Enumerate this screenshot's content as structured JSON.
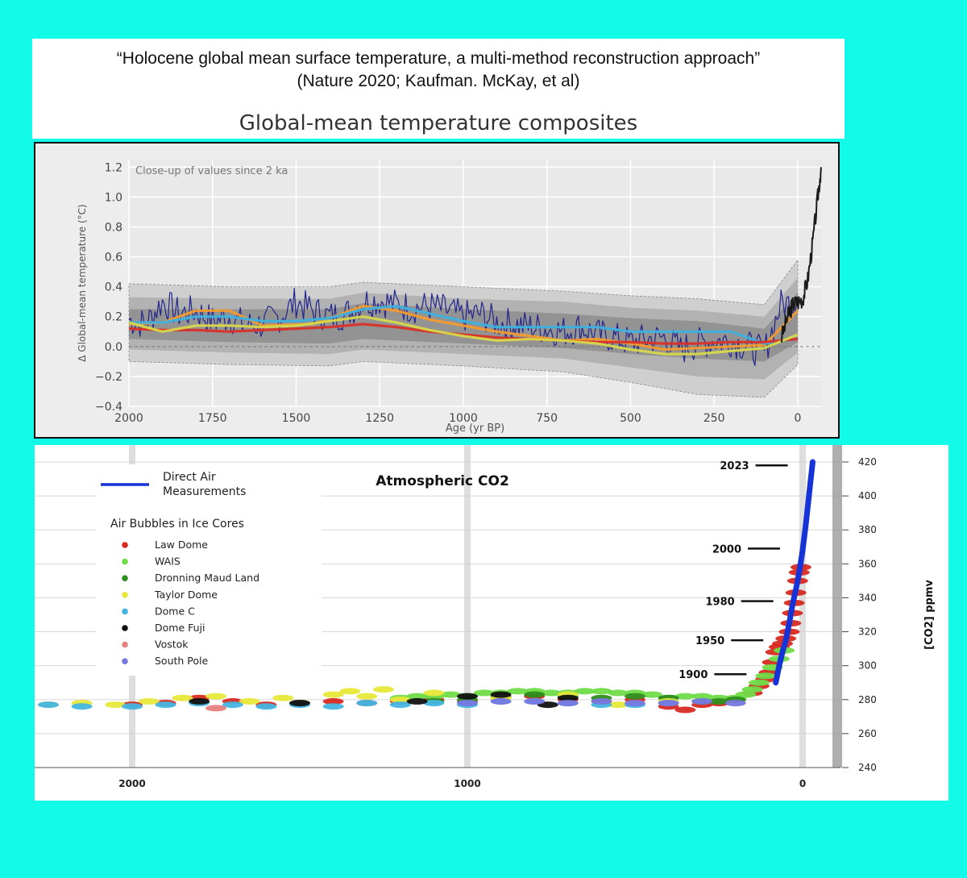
{
  "header": {
    "line1": "“Holocene global mean surface temperature, a multi-method reconstruction approach”",
    "line2": "(Nature 2020; Kaufman. McKay, et al)",
    "chart_title": "Global-mean temperature composites"
  },
  "colors": {
    "background": "#12fbe8",
    "noisy": "#1a1e8c",
    "orange": "#f39a2c",
    "cyan": "#3db1e0",
    "red": "#d83128",
    "yellow": "#d7d84a",
    "instrumental": "#111111",
    "direct_air": "#1633d8"
  },
  "chart_data": [
    {
      "type": "line",
      "title": "Global-mean temperature composites",
      "annotation": "Close-up of values since 2 ka",
      "xlabel": "Age (yr BP)",
      "ylabel": "Δ Global-mean temperature (°C)",
      "xlim": [
        2000,
        -70
      ],
      "ylim": [
        -0.4,
        1.25
      ],
      "x_ticks": [
        2000,
        1750,
        1500,
        1250,
        1000,
        750,
        500,
        250,
        0
      ],
      "x_tick_labels": [
        "2000",
        "1750",
        "1500",
        "1250",
        "1000",
        "750",
        "500",
        "250",
        "0"
      ],
      "y_ticks": [
        -0.4,
        -0.2,
        0.0,
        0.2,
        0.4,
        0.6,
        0.8,
        1.0,
        1.2
      ],
      "y_tick_labels": [
        "−0.4",
        "−0.2",
        "0.0",
        "0.2",
        "0.4",
        "0.6",
        "0.8",
        "1.0",
        "1.2"
      ],
      "grid": true,
      "uncertainty_bands": [
        {
          "name": "outer",
          "x": [
            2000,
            1700,
            1400,
            1300,
            1000,
            700,
            500,
            300,
            100,
            0
          ],
          "upper": [
            0.42,
            0.4,
            0.4,
            0.43,
            0.4,
            0.37,
            0.34,
            0.32,
            0.28,
            0.58
          ],
          "lower": [
            -0.1,
            -0.12,
            -0.13,
            -0.1,
            -0.13,
            -0.17,
            -0.24,
            -0.32,
            -0.34,
            -0.12
          ]
        },
        {
          "name": "middle",
          "x": [
            2000,
            1700,
            1400,
            1300,
            1000,
            700,
            500,
            300,
            100,
            0
          ],
          "upper": [
            0.33,
            0.32,
            0.32,
            0.36,
            0.32,
            0.3,
            0.26,
            0.24,
            0.2,
            0.46
          ],
          "lower": [
            -0.02,
            -0.04,
            -0.05,
            -0.02,
            -0.05,
            -0.08,
            -0.14,
            -0.2,
            -0.22,
            -0.04
          ]
        },
        {
          "name": "inner",
          "x": [
            2000,
            1700,
            1400,
            1300,
            1000,
            700,
            500,
            300,
            100,
            0
          ],
          "upper": [
            0.25,
            0.25,
            0.25,
            0.29,
            0.25,
            0.22,
            0.19,
            0.17,
            0.12,
            0.36
          ],
          "lower": [
            0.05,
            0.03,
            0.02,
            0.05,
            0.02,
            -0.01,
            -0.05,
            -0.08,
            -0.1,
            0.03
          ]
        }
      ],
      "series": [
        {
          "name": "high-resolution composite",
          "color": "#1a1e8c",
          "x": [
            2000,
            1950,
            1900,
            1850,
            1800,
            1750,
            1700,
            1650,
            1600,
            1550,
            1500,
            1450,
            1400,
            1350,
            1300,
            1250,
            1200,
            1150,
            1100,
            1050,
            1000,
            950,
            900,
            850,
            800,
            750,
            700,
            650,
            600,
            550,
            500,
            450,
            400,
            350,
            300,
            250,
            200,
            150,
            100,
            50,
            0
          ],
          "y": [
            0.18,
            0.15,
            0.3,
            0.22,
            0.24,
            0.17,
            0.2,
            0.14,
            0.15,
            0.2,
            0.3,
            0.24,
            0.2,
            0.22,
            0.3,
            0.31,
            0.28,
            0.26,
            0.27,
            0.24,
            0.2,
            0.22,
            0.16,
            0.15,
            0.13,
            0.12,
            0.1,
            0.13,
            0.08,
            0.06,
            0.03,
            0.05,
            0.06,
            -0.02,
            0.02,
            0.04,
            0.04,
            0.0,
            -0.04,
            0.28,
            0.3
          ]
        },
        {
          "name": "orange composite",
          "color": "#f39a2c",
          "x": [
            2000,
            1900,
            1800,
            1700,
            1600,
            1450,
            1300,
            1200,
            1100,
            1000,
            900,
            800,
            700,
            600,
            500,
            400,
            300,
            200,
            100,
            0
          ],
          "y": [
            0.15,
            0.16,
            0.24,
            0.24,
            0.14,
            0.15,
            0.27,
            0.24,
            0.18,
            0.14,
            0.1,
            0.07,
            0.04,
            0.05,
            0.02,
            -0.02,
            -0.01,
            0.0,
            0.01,
            0.24
          ]
        },
        {
          "name": "cyan composite",
          "color": "#3db1e0",
          "x": [
            2000,
            1900,
            1800,
            1700,
            1600,
            1500,
            1400,
            1300,
            1200,
            1100,
            1000,
            900,
            800,
            700,
            600,
            500,
            400,
            300,
            200,
            100,
            0
          ],
          "y": [
            0.16,
            0.16,
            0.2,
            0.2,
            0.17,
            0.17,
            0.19,
            0.25,
            0.27,
            0.22,
            0.17,
            0.13,
            0.13,
            0.13,
            0.13,
            0.1,
            0.1,
            0.1,
            0.1,
            0.02,
            0.05
          ]
        },
        {
          "name": "red composite",
          "color": "#d83128",
          "x": [
            2000,
            1900,
            1800,
            1700,
            1600,
            1500,
            1400,
            1300,
            1200,
            1100,
            1000,
            900,
            800,
            700,
            600,
            500,
            400,
            300,
            200,
            100,
            0
          ],
          "y": [
            0.12,
            0.11,
            0.11,
            0.1,
            0.11,
            0.12,
            0.13,
            0.15,
            0.13,
            0.1,
            0.08,
            0.06,
            0.05,
            0.04,
            0.03,
            0.03,
            0.02,
            0.02,
            0.03,
            0.03,
            0.05
          ]
        },
        {
          "name": "yellow composite",
          "color": "#d7d84a",
          "x": [
            2000,
            1900,
            1800,
            1700,
            1600,
            1500,
            1400,
            1300,
            1200,
            1100,
            1000,
            900,
            800,
            700,
            600,
            500,
            400,
            300,
            200,
            100,
            0
          ],
          "y": [
            0.16,
            0.1,
            0.14,
            0.14,
            0.13,
            0.14,
            0.17,
            0.2,
            0.16,
            0.11,
            0.07,
            0.04,
            0.05,
            0.04,
            0.02,
            -0.02,
            -0.05,
            -0.05,
            -0.03,
            -0.01,
            0.08
          ]
        },
        {
          "name": "instrumental",
          "color": "#111111",
          "x": [
            50,
            30,
            15,
            0,
            -15,
            -30,
            -45,
            -60,
            -70
          ],
          "y": [
            0.05,
            0.2,
            0.28,
            0.3,
            0.32,
            0.45,
            0.7,
            1.0,
            1.2
          ]
        }
      ]
    },
    {
      "type": "scatter",
      "title": "Atmospheric CO2",
      "ylabel": "[CO2] ppmv",
      "xlim": [
        2280,
        -70
      ],
      "ylim": [
        240,
        420
      ],
      "x_ticks": [
        2000,
        1000,
        0
      ],
      "x_tick_labels": [
        "2000",
        "1000",
        "0"
      ],
      "y_ticks": [
        240,
        260,
        280,
        300,
        320,
        340,
        360,
        380,
        400,
        420
      ],
      "y_tick_labels": [
        "240",
        "260",
        "280",
        "300",
        "320",
        "340",
        "360",
        "380",
        "400",
        "420"
      ],
      "grid": true,
      "legend": {
        "position": "top-left",
        "direct_label_line1": "Direct Air",
        "direct_label_line2": "Measurements",
        "ice_title": "Air Bubbles in Ice Cores"
      },
      "year_labels": [
        {
          "label": "2023",
          "x": -23,
          "y": 418
        },
        {
          "label": "2000",
          "x": 0,
          "y": 369
        },
        {
          "label": "1980",
          "x": 20,
          "y": 338
        },
        {
          "label": "1950",
          "x": 50,
          "y": 315
        },
        {
          "label": "1900",
          "x": 100,
          "y": 295
        }
      ],
      "direct_air": {
        "name": "Direct Air Measurements",
        "color": "#1633d8",
        "x": [
          80,
          70,
          60,
          50,
          40,
          30,
          20,
          10,
          0,
          -10,
          -20,
          -30
        ],
        "y": [
          290,
          300,
          308,
          315,
          325,
          336,
          345,
          355,
          368,
          384,
          402,
          420
        ]
      },
      "ice_cores": [
        {
          "name": "Law Dome",
          "color": "#d82a22",
          "x": [
            2000,
            1900,
            1800,
            1700,
            1600,
            1500,
            1400,
            1300,
            1200,
            1100,
            1000,
            900,
            800,
            700,
            600,
            500,
            400,
            350,
            300,
            250,
            200,
            150,
            130,
            110,
            100,
            90,
            80,
            70,
            60,
            50,
            40,
            35,
            30,
            25,
            20,
            15,
            10,
            5
          ],
          "y": [
            277,
            278,
            281,
            279,
            277,
            278,
            279,
            278,
            279,
            280,
            279,
            281,
            282,
            280,
            279,
            280,
            276,
            274,
            277,
            278,
            280,
            284,
            288,
            292,
            296,
            302,
            308,
            311,
            313,
            316,
            320,
            325,
            331,
            337,
            343,
            350,
            355,
            358
          ]
        },
        {
          "name": "WAIS",
          "color": "#6fdc47",
          "x": [
            1200,
            1150,
            1100,
            1050,
            1000,
            950,
            900,
            850,
            800,
            750,
            700,
            650,
            600,
            550,
            500,
            450,
            400,
            350,
            300,
            250,
            200,
            170,
            150,
            130,
            110,
            90,
            70,
            55
          ],
          "y": [
            281,
            282,
            282,
            283,
            282,
            284,
            284,
            285,
            285,
            284,
            284,
            285,
            285,
            284,
            284,
            283,
            281,
            282,
            282,
            281,
            281,
            283,
            286,
            290,
            294,
            299,
            304,
            309
          ]
        },
        {
          "name": "Dronning Maud Land",
          "color": "#2e8e1e",
          "x": [
            1100,
            1000,
            900,
            800,
            700,
            600,
            500,
            400,
            300,
            250,
            200
          ],
          "y": [
            279,
            280,
            282,
            283,
            282,
            281,
            282,
            281,
            279,
            279,
            280
          ]
        },
        {
          "name": "Taylor Dome",
          "color": "#e8e83a",
          "x": [
            2250,
            2150,
            2050,
            1950,
            1850,
            1750,
            1650,
            1550,
            1500,
            1400,
            1350,
            1300,
            1250,
            1200,
            1100,
            900,
            700,
            550,
            400
          ],
          "y": [
            277,
            278,
            277,
            279,
            281,
            282,
            279,
            281,
            278,
            283,
            285,
            282,
            286,
            280,
            284,
            281,
            283,
            277,
            279
          ]
        },
        {
          "name": "Dome C",
          "color": "#45b6e2",
          "x": [
            2250,
            2150,
            2000,
            1900,
            1800,
            1700,
            1600,
            1500,
            1400,
            1300,
            1200,
            1100,
            1000,
            900,
            800,
            700,
            600,
            500,
            400
          ],
          "y": [
            277,
            276,
            276,
            277,
            278,
            277,
            276,
            277,
            276,
            278,
            277,
            278,
            277,
            279,
            279,
            278,
            277,
            277,
            278
          ]
        },
        {
          "name": "Dome Fuji",
          "color": "#111111",
          "x": [
            1800,
            1500,
            1150,
            1000,
            900,
            760,
            700
          ],
          "y": [
            279,
            278,
            279,
            282,
            283,
            277,
            281
          ]
        },
        {
          "name": "Vostok",
          "color": "#e88080",
          "x": [
            1750
          ],
          "y": [
            275
          ]
        },
        {
          "name": "South Pole",
          "color": "#7878e0",
          "x": [
            1000,
            900,
            800,
            700,
            600,
            500,
            400,
            300,
            200
          ],
          "y": [
            278,
            279,
            279,
            278,
            279,
            278,
            278,
            279,
            278
          ]
        }
      ]
    }
  ]
}
